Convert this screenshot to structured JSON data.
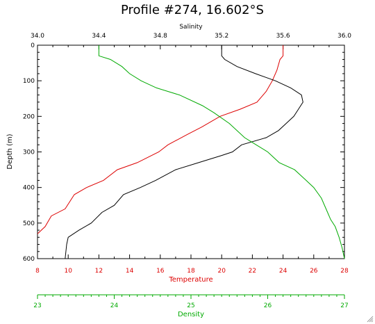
{
  "chart_data": {
    "type": "line",
    "title": "Profile #274, 16.602°S",
    "ylabel": "Depth (m)",
    "y_axis": {
      "ylim": [
        0,
        600
      ],
      "reversed": true,
      "ticks": [
        0,
        100,
        200,
        300,
        400,
        500,
        600
      ],
      "tick_labels": [
        "0",
        "100",
        "200",
        "300",
        "400",
        "500",
        "600"
      ]
    },
    "axes": {
      "salinity": {
        "label": "Salinity",
        "position": "top",
        "color": "#000000",
        "xlim": [
          34.0,
          36.0
        ],
        "ticks": [
          34.0,
          34.4,
          34.8,
          35.2,
          35.6,
          36.0
        ],
        "tick_labels": [
          "34.0",
          "34.4",
          "34.8",
          "35.2",
          "35.6",
          "36.0"
        ]
      },
      "temperature": {
        "label": "Temperature",
        "position": "bottom",
        "color": "#dd0000",
        "xlim": [
          8,
          28
        ],
        "ticks": [
          8,
          10,
          12,
          14,
          16,
          18,
          20,
          22,
          24,
          26,
          28
        ],
        "tick_labels": [
          "8",
          "10",
          "12",
          "14",
          "16",
          "18",
          "20",
          "22",
          "24",
          "26",
          "28"
        ]
      },
      "density": {
        "label": "Density",
        "position": "bottom-separate",
        "color": "#00aa00",
        "xlim": [
          23,
          27
        ],
        "ticks": [
          23,
          24,
          25,
          26,
          27
        ],
        "tick_labels": [
          "23",
          "24",
          "25",
          "26",
          "27"
        ]
      }
    },
    "grid": false,
    "series": [
      {
        "axis": "temperature",
        "color": "#dd0000",
        "points": [
          [
            24.0,
            0
          ],
          [
            24.0,
            30
          ],
          [
            23.8,
            40
          ],
          [
            23.6,
            70
          ],
          [
            23.3,
            100
          ],
          [
            22.9,
            130
          ],
          [
            22.3,
            160
          ],
          [
            21.2,
            180
          ],
          [
            19.9,
            200
          ],
          [
            18.7,
            230
          ],
          [
            17.8,
            250
          ],
          [
            16.5,
            280
          ],
          [
            15.9,
            300
          ],
          [
            14.5,
            330
          ],
          [
            13.2,
            350
          ],
          [
            12.3,
            380
          ],
          [
            11.2,
            400
          ],
          [
            10.4,
            420
          ],
          [
            9.8,
            460
          ],
          [
            8.9,
            480
          ],
          [
            8.5,
            510
          ],
          [
            8.0,
            530
          ]
        ]
      },
      {
        "axis": "salinity",
        "color": "#000000",
        "points": [
          [
            35.2,
            0
          ],
          [
            35.2,
            30
          ],
          [
            35.22,
            40
          ],
          [
            35.3,
            60
          ],
          [
            35.42,
            80
          ],
          [
            35.55,
            100
          ],
          [
            35.65,
            120
          ],
          [
            35.72,
            140
          ],
          [
            35.73,
            160
          ],
          [
            35.7,
            180
          ],
          [
            35.67,
            200
          ],
          [
            35.62,
            220
          ],
          [
            35.57,
            240
          ],
          [
            35.49,
            260
          ],
          [
            35.33,
            280
          ],
          [
            35.27,
            300
          ],
          [
            35.2,
            310
          ],
          [
            35.05,
            330
          ],
          [
            34.9,
            350
          ],
          [
            34.77,
            380
          ],
          [
            34.67,
            400
          ],
          [
            34.56,
            420
          ],
          [
            34.5,
            450
          ],
          [
            34.42,
            470
          ],
          [
            34.35,
            500
          ],
          [
            34.27,
            520
          ],
          [
            34.2,
            540
          ],
          [
            34.19,
            560
          ],
          [
            34.18,
            600
          ]
        ]
      },
      {
        "axis": "density",
        "color": "#00aa00",
        "points": [
          [
            23.8,
            0
          ],
          [
            23.8,
            30
          ],
          [
            23.95,
            40
          ],
          [
            24.1,
            60
          ],
          [
            24.2,
            80
          ],
          [
            24.35,
            100
          ],
          [
            24.55,
            120
          ],
          [
            24.85,
            140
          ],
          [
            25.15,
            170
          ],
          [
            25.3,
            190
          ],
          [
            25.5,
            220
          ],
          [
            25.7,
            260
          ],
          [
            25.85,
            280
          ],
          [
            26.0,
            300
          ],
          [
            26.15,
            330
          ],
          [
            26.35,
            350
          ],
          [
            26.5,
            380
          ],
          [
            26.6,
            400
          ],
          [
            26.7,
            430
          ],
          [
            26.78,
            470
          ],
          [
            26.82,
            490
          ],
          [
            26.88,
            510
          ],
          [
            26.93,
            540
          ],
          [
            26.97,
            570
          ],
          [
            27.0,
            600
          ]
        ]
      }
    ]
  }
}
